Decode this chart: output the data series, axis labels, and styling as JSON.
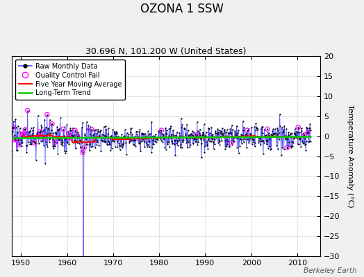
{
  "title": "OZONA 1 SSW",
  "subtitle": "30.696 N, 101.200 W (United States)",
  "ylabel": "Temperature Anomaly (°C)",
  "watermark": "Berkeley Earth",
  "xlim": [
    1948,
    2015
  ],
  "ylim": [
    -30,
    20
  ],
  "yticks": [
    -30,
    -25,
    -20,
    -15,
    -10,
    -5,
    0,
    5,
    10,
    15,
    20
  ],
  "xticks": [
    1950,
    1960,
    1970,
    1980,
    1990,
    2000,
    2010
  ],
  "bg_color": "#f0f0f0",
  "plot_bg_color": "#ffffff",
  "raw_line_color": "#4444ff",
  "raw_marker_color": "black",
  "qc_marker_color": "magenta",
  "moving_avg_color": "red",
  "trend_color": "#00cc00",
  "title_fontsize": 12,
  "subtitle_fontsize": 9,
  "seed": 17
}
